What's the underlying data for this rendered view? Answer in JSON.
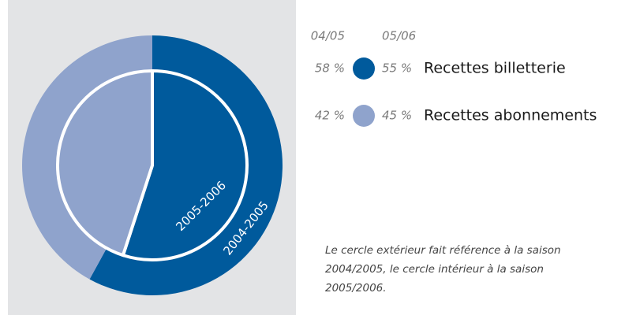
{
  "chart_data": {
    "type": "nested_pie",
    "categories": [
      "Recettes billetterie",
      "Recettes abonnements"
    ],
    "colors": [
      "#005a9c",
      "#8fa3cc"
    ],
    "series": [
      {
        "name": "2004-2005",
        "label": "04/05",
        "values": [
          58,
          42
        ],
        "value_labels": [
          "58 %",
          "42 %"
        ]
      },
      {
        "name": "2005-2006",
        "label": "05/06",
        "values": [
          55,
          45
        ],
        "value_labels": [
          "55 %",
          "45 %"
        ]
      }
    ],
    "annotation": [
      "Le cercle extérieur fait référence à la saison",
      "2004/2005, le cercle intérieur à la saison",
      "2005/2006."
    ]
  }
}
